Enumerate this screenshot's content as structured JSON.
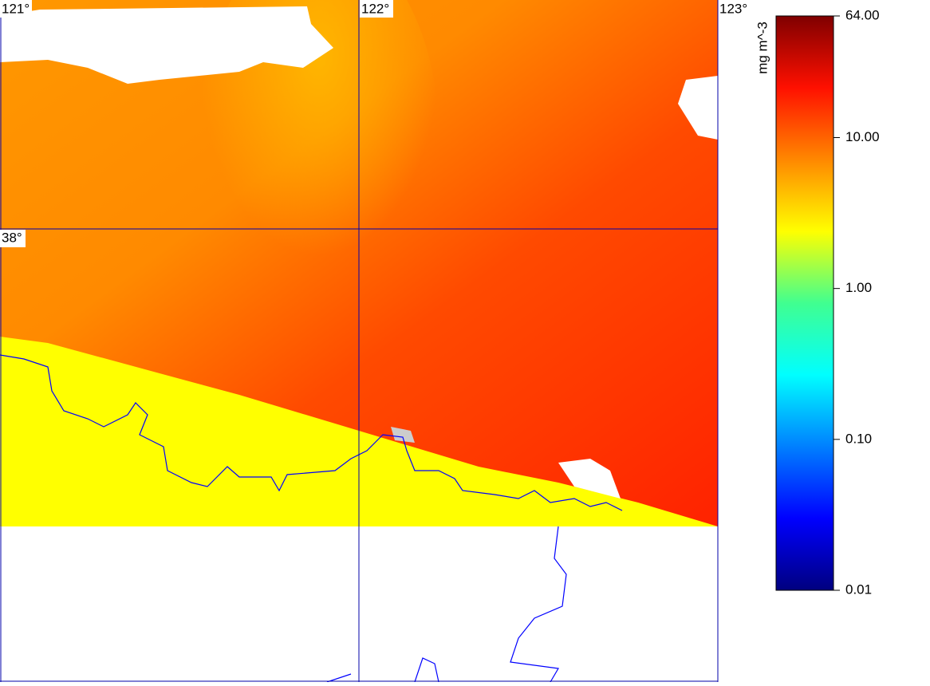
{
  "map": {
    "lon_labels": [
      "121°",
      "122°",
      "123°"
    ],
    "lat_labels": [
      "38°"
    ]
  },
  "colorbar": {
    "unit": "mg m^-3",
    "scale": "log",
    "lim": [
      0.01,
      64
    ],
    "ticks": [
      {
        "value": 64,
        "label": "64.00"
      },
      {
        "value": 10,
        "label": "10.00"
      },
      {
        "value": 1,
        "label": "1.00"
      },
      {
        "value": 0.1,
        "label": "0.10"
      },
      {
        "value": 0.01,
        "label": "0.01"
      }
    ]
  }
}
